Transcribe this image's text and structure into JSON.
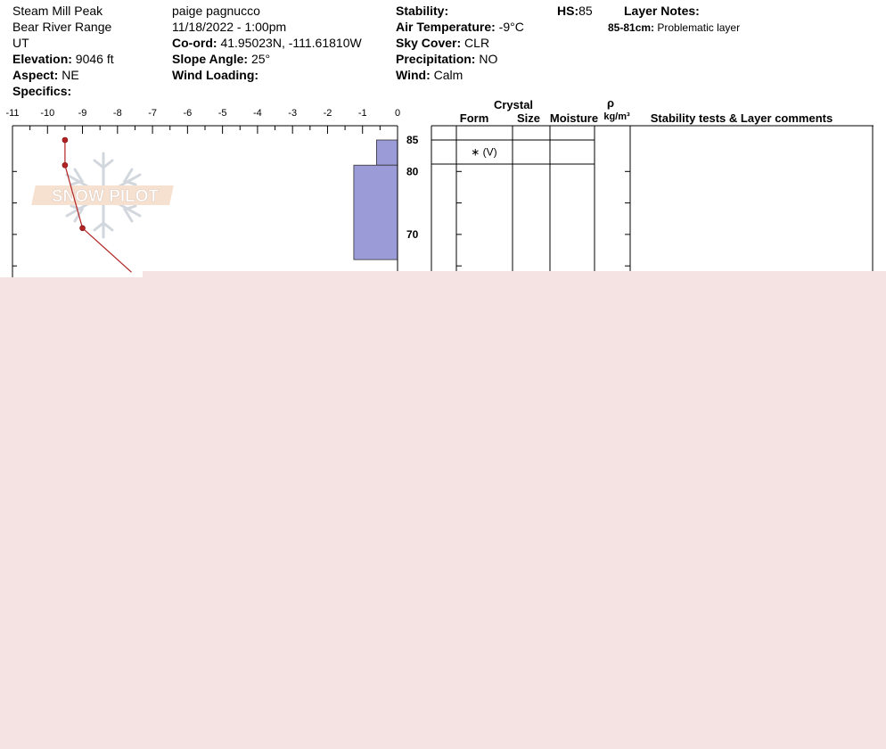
{
  "header": {
    "location": "Steam Mill Peak",
    "range": "Bear River Range",
    "state": "UT",
    "elevation_label": "Elevation:",
    "elevation_value": "9046 ft",
    "aspect_label": "Aspect:",
    "aspect_value": "NE",
    "specifics_label": "Specifics:",
    "observer": "paige pagnucco",
    "datetime": "11/18/2022 - 1:00pm",
    "coord_label": "Co-ord:",
    "coord_value": "41.95023N, -111.61810W",
    "slope_label": "Slope Angle:",
    "slope_value": "25°",
    "wind_loading_label": "Wind Loading:",
    "stability_label": "Stability:",
    "air_temp_label": "Air Temperature:",
    "air_temp_value": "-9°C",
    "sky_label": "Sky Cover:",
    "sky_value": "CLR",
    "precip_label": "Precipitation:",
    "precip_value": "NO",
    "wind_label": "Wind:",
    "wind_value": "Calm",
    "hs_label": "HS:",
    "hs_value": "85",
    "layer_notes_label": "Layer Notes:",
    "layer_note_range": "85-81cm:",
    "layer_note_text": "Problematic layer"
  },
  "logo": {
    "text": "SNOW PILOT"
  },
  "table": {
    "crystal_label": "Crystal",
    "form_label": "Form",
    "size_label": "Size",
    "moisture_label": "Moisture",
    "density_symbol": "ρ",
    "density_unit": "kg/m³",
    "comments_label": "Stability tests & Layer comments",
    "layers": [
      {
        "top": 85,
        "bottom": 81,
        "form": "∗ (V)",
        "size": "",
        "moisture": ""
      }
    ]
  },
  "chart_data": {
    "type": "line",
    "temperature_axis": {
      "min": -11,
      "max": 0,
      "ticks": [
        -11,
        -10,
        -9,
        -8,
        -7,
        -6,
        -5,
        -4,
        -3,
        -2,
        -1,
        0
      ]
    },
    "depth_axis": {
      "visible_min": 66,
      "max": 85,
      "labels": [
        85,
        80,
        70
      ]
    },
    "temperature_profile": [
      {
        "depth": 85,
        "temp": -9.5
      },
      {
        "depth": 81,
        "temp": -9.5
      },
      {
        "depth": 71,
        "temp": -9.0
      },
      {
        "depth": 64,
        "temp": -7.6
      }
    ],
    "hardness_profile": [
      {
        "top": 85,
        "bottom": 81,
        "hardness_level": 0.6
      },
      {
        "top": 81,
        "bottom": 66,
        "hardness_level": 1.25
      }
    ],
    "colors": {
      "temperature": "#b22222",
      "hardness": "#9b9bd8",
      "background": "#f5e3e3"
    }
  }
}
